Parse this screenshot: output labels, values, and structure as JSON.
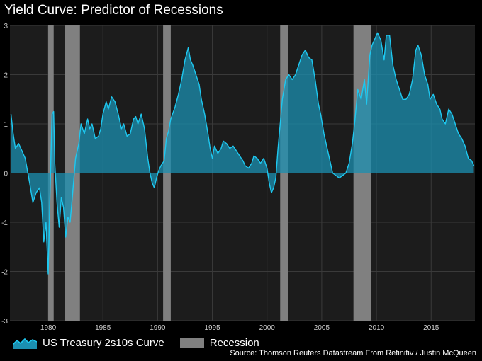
{
  "title": "Yield Curve: Predictor of Recessions",
  "legend": {
    "series_label": "US Treasury 2s10s Curve",
    "recession_label": "Recession"
  },
  "source": "Source: Thomson Reuters Datastream From Refinitiv / Justin McQueen",
  "colors": {
    "background": "#000000",
    "plot_background": "#1c1c1c",
    "grid": "#3a3a3a",
    "line": "#1ec8f0",
    "area": "#1b8fb0",
    "recession": "#808080",
    "zero_line": "#a0e6f7"
  },
  "chart_data": {
    "type": "area",
    "title": "Yield Curve: Predictor of Recessions",
    "xlabel": "",
    "ylabel": "",
    "xlim": [
      1976.5,
      2019.0
    ],
    "ylim": [
      -3,
      3
    ],
    "x_ticks": [
      1980,
      1985,
      1990,
      1995,
      2000,
      2005,
      2010,
      2015
    ],
    "y_ticks": [
      3,
      2,
      1,
      0,
      -1,
      -2,
      -3
    ],
    "grid": true,
    "legend_position": "bottom-left",
    "recessions": [
      [
        1980.0,
        1980.5
      ],
      [
        1981.5,
        1982.9
      ],
      [
        1990.5,
        1991.2
      ],
      [
        2001.2,
        2001.9
      ],
      [
        2007.9,
        2009.5
      ]
    ],
    "series": [
      {
        "name": "US Treasury 2s10s Curve",
        "points": [
          [
            1976.6,
            1.2
          ],
          [
            1976.8,
            0.8
          ],
          [
            1977.0,
            0.5
          ],
          [
            1977.3,
            0.6
          ],
          [
            1977.6,
            0.45
          ],
          [
            1977.9,
            0.3
          ],
          [
            1978.1,
            0.05
          ],
          [
            1978.3,
            -0.2
          ],
          [
            1978.6,
            -0.6
          ],
          [
            1978.9,
            -0.4
          ],
          [
            1979.2,
            -0.3
          ],
          [
            1979.4,
            -0.6
          ],
          [
            1979.6,
            -1.4
          ],
          [
            1979.8,
            -1.0
          ],
          [
            1980.0,
            -2.05
          ],
          [
            1980.15,
            -0.6
          ],
          [
            1980.35,
            1.2
          ],
          [
            1980.5,
            1.25
          ],
          [
            1980.6,
            0.2
          ],
          [
            1980.8,
            -0.6
          ],
          [
            1981.0,
            -1.1
          ],
          [
            1981.2,
            -0.5
          ],
          [
            1981.4,
            -0.7
          ],
          [
            1981.6,
            -1.3
          ],
          [
            1981.8,
            -0.9
          ],
          [
            1982.0,
            -1.0
          ],
          [
            1982.2,
            -0.5
          ],
          [
            1982.5,
            0.3
          ],
          [
            1982.8,
            0.6
          ],
          [
            1983.0,
            1.0
          ],
          [
            1983.3,
            0.8
          ],
          [
            1983.6,
            1.1
          ],
          [
            1983.8,
            0.9
          ],
          [
            1984.0,
            1.0
          ],
          [
            1984.3,
            0.7
          ],
          [
            1984.6,
            0.75
          ],
          [
            1984.8,
            0.9
          ],
          [
            1985.0,
            1.2
          ],
          [
            1985.3,
            1.45
          ],
          [
            1985.5,
            1.3
          ],
          [
            1985.8,
            1.55
          ],
          [
            1986.1,
            1.45
          ],
          [
            1986.4,
            1.2
          ],
          [
            1986.7,
            0.9
          ],
          [
            1986.9,
            1.0
          ],
          [
            1987.2,
            0.75
          ],
          [
            1987.5,
            0.8
          ],
          [
            1987.8,
            1.1
          ],
          [
            1988.0,
            1.15
          ],
          [
            1988.2,
            1.0
          ],
          [
            1988.5,
            1.2
          ],
          [
            1988.8,
            0.9
          ],
          [
            1989.1,
            0.3
          ],
          [
            1989.3,
            0.0
          ],
          [
            1989.5,
            -0.2
          ],
          [
            1989.7,
            -0.3
          ],
          [
            1989.9,
            -0.1
          ],
          [
            1990.1,
            0.05
          ],
          [
            1990.3,
            0.15
          ],
          [
            1990.6,
            0.25
          ],
          [
            1990.8,
            0.7
          ],
          [
            1991.0,
            0.85
          ],
          [
            1991.2,
            1.1
          ],
          [
            1991.6,
            1.35
          ],
          [
            1991.9,
            1.6
          ],
          [
            1992.2,
            1.9
          ],
          [
            1992.5,
            2.3
          ],
          [
            1992.8,
            2.55
          ],
          [
            1993.0,
            2.3
          ],
          [
            1993.2,
            2.2
          ],
          [
            1993.5,
            2.0
          ],
          [
            1993.8,
            1.8
          ],
          [
            1994.0,
            1.5
          ],
          [
            1994.3,
            1.2
          ],
          [
            1994.6,
            0.8
          ],
          [
            1994.8,
            0.5
          ],
          [
            1995.0,
            0.3
          ],
          [
            1995.2,
            0.55
          ],
          [
            1995.5,
            0.4
          ],
          [
            1995.8,
            0.5
          ],
          [
            1996.0,
            0.65
          ],
          [
            1996.3,
            0.6
          ],
          [
            1996.6,
            0.5
          ],
          [
            1996.9,
            0.55
          ],
          [
            1997.2,
            0.45
          ],
          [
            1997.5,
            0.35
          ],
          [
            1997.8,
            0.25
          ],
          [
            1998.0,
            0.15
          ],
          [
            1998.3,
            0.1
          ],
          [
            1998.6,
            0.2
          ],
          [
            1998.8,
            0.35
          ],
          [
            1999.1,
            0.3
          ],
          [
            1999.4,
            0.2
          ],
          [
            1999.7,
            0.3
          ],
          [
            2000.0,
            0.1
          ],
          [
            2000.2,
            -0.2
          ],
          [
            2000.4,
            -0.4
          ],
          [
            2000.6,
            -0.3
          ],
          [
            2000.8,
            -0.1
          ],
          [
            2001.0,
            0.5
          ],
          [
            2001.2,
            1.0
          ],
          [
            2001.4,
            1.5
          ],
          [
            2001.7,
            1.9
          ],
          [
            2002.0,
            2.0
          ],
          [
            2002.3,
            1.9
          ],
          [
            2002.6,
            2.0
          ],
          [
            2002.9,
            2.2
          ],
          [
            2003.2,
            2.4
          ],
          [
            2003.5,
            2.5
          ],
          [
            2003.8,
            2.35
          ],
          [
            2004.1,
            2.3
          ],
          [
            2004.4,
            1.9
          ],
          [
            2004.7,
            1.4
          ],
          [
            2004.9,
            1.2
          ],
          [
            2005.2,
            0.8
          ],
          [
            2005.5,
            0.5
          ],
          [
            2005.8,
            0.2
          ],
          [
            2006.0,
            0.0
          ],
          [
            2006.3,
            -0.05
          ],
          [
            2006.6,
            -0.1
          ],
          [
            2006.9,
            -0.05
          ],
          [
            2007.2,
            0.0
          ],
          [
            2007.5,
            0.2
          ],
          [
            2007.8,
            0.6
          ],
          [
            2008.0,
            1.0
          ],
          [
            2008.3,
            1.7
          ],
          [
            2008.6,
            1.5
          ],
          [
            2008.9,
            1.9
          ],
          [
            2009.1,
            1.4
          ],
          [
            2009.4,
            2.4
          ],
          [
            2009.6,
            2.6
          ],
          [
            2009.9,
            2.75
          ],
          [
            2010.1,
            2.85
          ],
          [
            2010.4,
            2.7
          ],
          [
            2010.7,
            2.3
          ],
          [
            2010.9,
            2.8
          ],
          [
            2011.2,
            2.8
          ],
          [
            2011.5,
            2.2
          ],
          [
            2011.8,
            1.9
          ],
          [
            2012.1,
            1.7
          ],
          [
            2012.4,
            1.5
          ],
          [
            2012.7,
            1.5
          ],
          [
            2013.0,
            1.6
          ],
          [
            2013.3,
            1.9
          ],
          [
            2013.6,
            2.5
          ],
          [
            2013.8,
            2.6
          ],
          [
            2014.1,
            2.4
          ],
          [
            2014.4,
            2.0
          ],
          [
            2014.7,
            1.8
          ],
          [
            2014.9,
            1.5
          ],
          [
            2015.2,
            1.6
          ],
          [
            2015.5,
            1.4
          ],
          [
            2015.8,
            1.3
          ],
          [
            2016.0,
            1.1
          ],
          [
            2016.3,
            1.0
          ],
          [
            2016.6,
            1.3
          ],
          [
            2016.9,
            1.2
          ],
          [
            2017.2,
            1.0
          ],
          [
            2017.5,
            0.8
          ],
          [
            2017.8,
            0.7
          ],
          [
            2018.1,
            0.55
          ],
          [
            2018.4,
            0.3
          ],
          [
            2018.7,
            0.25
          ],
          [
            2018.9,
            0.15
          ]
        ]
      }
    ]
  }
}
